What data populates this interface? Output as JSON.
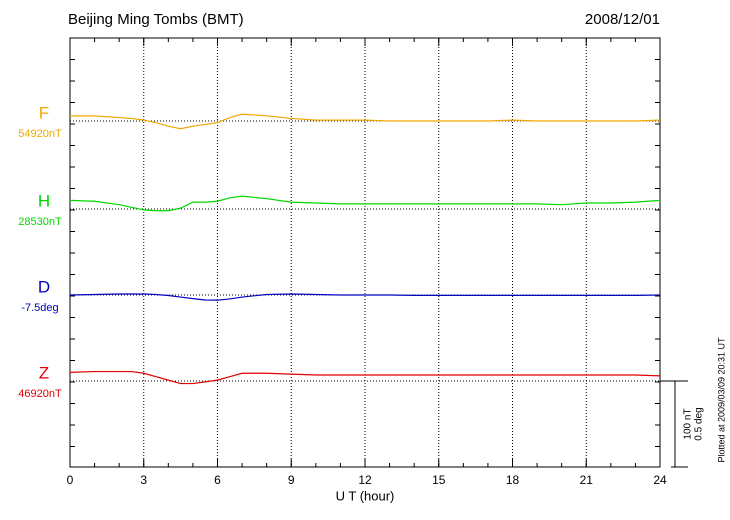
{
  "chart_data": {
    "type": "line",
    "title": "Beijing Ming Tombs (BMT)",
    "date": "2008/12/01",
    "xlabel": "U T (hour)",
    "footnote": "Plotted at 2009/03/09 20:31 UT",
    "xlim": [
      0,
      24
    ],
    "xticks": [
      0,
      3,
      6,
      9,
      12,
      15,
      18,
      21,
      24
    ],
    "grid": true,
    "scale_bar": [
      {
        "value": 100,
        "label": "100 nT"
      },
      {
        "value": 0.5,
        "label": "0.5 deg"
      }
    ],
    "x": [
      0,
      1,
      2,
      2.5,
      3,
      3.5,
      4,
      4.5,
      5,
      5.5,
      6,
      6.5,
      7,
      8,
      9,
      10,
      11,
      12,
      13,
      14,
      15,
      16,
      17,
      18,
      19,
      20,
      21,
      22,
      23,
      24
    ],
    "series": [
      {
        "name": "F",
        "color": "#f0a800",
        "baseline": {
          "value": 54920,
          "label": "54920nT"
        },
        "values": [
          54926,
          54926,
          54924,
          54923,
          54921,
          54918,
          54914,
          54911,
          54914,
          54916,
          54918,
          54924,
          54928,
          54926,
          54923,
          54921,
          54921,
          54921,
          54920,
          54920,
          54920,
          54920,
          54920,
          54921,
          54920,
          54920,
          54920,
          54920,
          54920,
          54921
        ]
      },
      {
        "name": "H",
        "color": "#00d800",
        "baseline": {
          "value": 28530,
          "label": "28530nT"
        },
        "values": [
          28540,
          28539,
          28535,
          28532,
          28529,
          28528,
          28528,
          28531,
          28538,
          28538,
          28539,
          28543,
          28545,
          28542,
          28538,
          28537,
          28536,
          28536,
          28536,
          28536,
          28536,
          28536,
          28536,
          28536,
          28536,
          28535,
          28537,
          28537,
          28538,
          28540
        ]
      },
      {
        "name": "D",
        "color": "#0000c0",
        "baseline": {
          "value": -7.5,
          "label": "-7.5deg"
        },
        "values": [
          -7.5,
          -7.497,
          -7.494,
          -7.494,
          -7.494,
          -7.497,
          -7.503,
          -7.512,
          -7.521,
          -7.529,
          -7.53,
          -7.523,
          -7.512,
          -7.497,
          -7.494,
          -7.497,
          -7.5,
          -7.5,
          -7.5,
          -7.502,
          -7.502,
          -7.502,
          -7.502,
          -7.502,
          -7.502,
          -7.502,
          -7.502,
          -7.502,
          -7.502,
          -7.5
        ]
      },
      {
        "name": "Z",
        "color": "#e00000",
        "baseline": {
          "value": 46920,
          "label": "46920nT"
        },
        "values": [
          46930,
          46931,
          46931,
          46931,
          46929,
          46925,
          46921,
          46917,
          46917,
          46919,
          46921,
          46925,
          46929,
          46929,
          46928,
          46927,
          46927,
          46927,
          46927,
          46927,
          46927,
          46927,
          46927,
          46927,
          46927,
          46927,
          46927,
          46927,
          46927,
          46926
        ]
      }
    ]
  }
}
